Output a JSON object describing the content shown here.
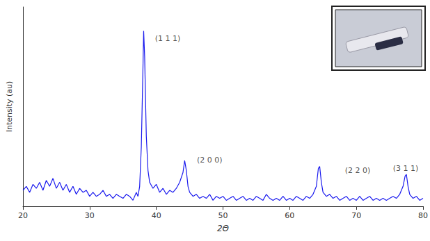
{
  "chart_data": {
    "type": "line",
    "x_label": "2Θ",
    "y_label": "Intensity (au)",
    "color": "#1a1aee",
    "xlim": [
      20,
      80
    ],
    "xticks": [
      20,
      30,
      40,
      50,
      60,
      70,
      80
    ],
    "ylim": [
      0,
      100
    ],
    "tick_labels": "x",
    "grid": false,
    "x": [
      20,
      20.5,
      21,
      21.5,
      22,
      22.5,
      23,
      23.5,
      24,
      24.5,
      25,
      25.5,
      26,
      26.5,
      27,
      27.5,
      28,
      28.5,
      29,
      29.5,
      30,
      30.5,
      31,
      31.5,
      32,
      32.5,
      33,
      33.5,
      34,
      34.5,
      35,
      35.5,
      36,
      36.5,
      37,
      37.25,
      37.5,
      37.75,
      38,
      38.1,
      38.25,
      38.5,
      38.75,
      39,
      39.5,
      40,
      40.5,
      41,
      41.5,
      42,
      42.5,
      43,
      43.5,
      44,
      44.25,
      44.5,
      44.75,
      45,
      45.5,
      46,
      46.5,
      47,
      47.5,
      48,
      48.5,
      49,
      49.5,
      50,
      50.5,
      51,
      51.5,
      52,
      52.5,
      53,
      53.5,
      54,
      54.5,
      55,
      55.5,
      56,
      56.5,
      57,
      57.5,
      58,
      58.5,
      59,
      59.5,
      60,
      60.5,
      61,
      61.5,
      62,
      62.5,
      63,
      63.5,
      64,
      64.3,
      64.5,
      64.75,
      65,
      65.5,
      66,
      66.5,
      67,
      67.5,
      68,
      68.5,
      69,
      69.5,
      70,
      70.5,
      71,
      71.5,
      72,
      72.5,
      73,
      73.5,
      74,
      74.5,
      75,
      75.5,
      76,
      76.5,
      77,
      77.3,
      77.5,
      77.75,
      78,
      78.5,
      79,
      79.5,
      80
    ],
    "values": [
      8,
      10,
      7,
      11,
      9,
      12,
      8,
      13,
      10,
      14,
      9,
      12,
      8,
      11,
      7,
      10,
      6,
      9,
      7,
      8,
      5,
      7,
      5,
      6,
      8,
      5,
      6,
      4,
      6,
      5,
      4,
      6,
      5,
      3,
      7,
      5,
      10,
      30,
      70,
      88,
      75,
      35,
      18,
      12,
      9,
      11,
      7,
      9,
      6,
      8,
      7,
      9,
      12,
      17,
      23,
      18,
      10,
      7,
      5,
      6,
      4,
      5,
      4,
      6,
      3,
      5,
      4,
      5,
      3,
      4,
      5,
      3,
      4,
      5,
      3,
      4,
      3,
      5,
      4,
      3,
      6,
      4,
      3,
      4,
      3,
      5,
      3,
      4,
      3,
      5,
      4,
      3,
      5,
      4,
      6,
      10,
      19,
      20,
      12,
      7,
      5,
      6,
      4,
      5,
      3,
      4,
      5,
      3,
      4,
      3,
      5,
      3,
      4,
      5,
      3,
      4,
      3,
      4,
      3,
      4,
      5,
      4,
      6,
      10,
      15,
      16,
      10,
      6,
      4,
      5,
      3,
      4
    ],
    "annotations": [
      {
        "text": "(1 1 1)",
        "x": 41.7,
        "y": 84
      },
      {
        "text": "(2 0 0)",
        "x": 48,
        "y": 23
      },
      {
        "text": "(2 2 0)",
        "x": 70.2,
        "y": 18
      },
      {
        "text": "(3 1 1)",
        "x": 77.4,
        "y": 19
      }
    ]
  }
}
